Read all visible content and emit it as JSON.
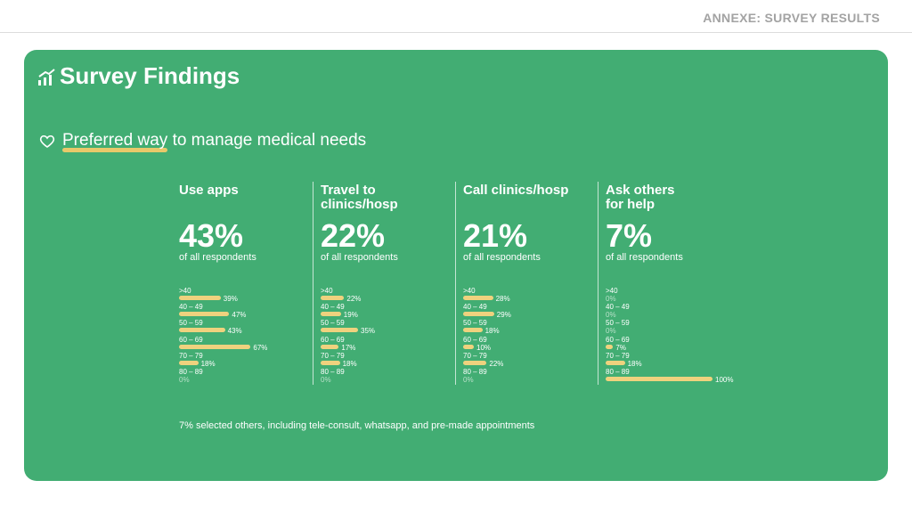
{
  "header": {
    "title": "ANNEXE: SURVEY RESULTS"
  },
  "card": {
    "title": "Survey Findings",
    "subtitle": {
      "highlight": "Preferred way",
      "rest": "to manage medical needs"
    },
    "columns": [
      {
        "label": "Use apps",
        "percent": "43%",
        "caption": "of all respondents",
        "rows": [
          {
            "label": ">40",
            "value": 39,
            "value_label": "39%"
          },
          {
            "label": "40 – 49",
            "value": 47,
            "value_label": "47%"
          },
          {
            "label": "50 – 59",
            "value": 43,
            "value_label": "43%"
          },
          {
            "label": "60 – 69",
            "value": 67,
            "value_label": "67%"
          },
          {
            "label": "70 – 79",
            "value": 18,
            "value_label": "18%"
          },
          {
            "label": "80 – 89",
            "value": 0,
            "value_label": "0%"
          }
        ]
      },
      {
        "label": "Travel to clinics/hosp",
        "percent": "22%",
        "caption": "of all respondents",
        "rows": [
          {
            "label": ">40",
            "value": 22,
            "value_label": "22%"
          },
          {
            "label": "40 – 49",
            "value": 19,
            "value_label": "19%"
          },
          {
            "label": "50 – 59",
            "value": 35,
            "value_label": "35%"
          },
          {
            "label": "60 – 69",
            "value": 17,
            "value_label": "17%"
          },
          {
            "label": "70 – 79",
            "value": 18,
            "value_label": "18%"
          },
          {
            "label": "80 – 89",
            "value": 0,
            "value_label": "0%"
          }
        ]
      },
      {
        "label": "Call clinics/hosp",
        "percent": "21%",
        "caption": "of all respondents",
        "rows": [
          {
            "label": ">40",
            "value": 28,
            "value_label": "28%"
          },
          {
            "label": "40 – 49",
            "value": 29,
            "value_label": "29%"
          },
          {
            "label": "50 – 59",
            "value": 18,
            "value_label": "18%"
          },
          {
            "label": "60 – 69",
            "value": 10,
            "value_label": "10%"
          },
          {
            "label": "70 – 79",
            "value": 22,
            "value_label": "22%"
          },
          {
            "label": "80 – 89",
            "value": 0,
            "value_label": "0%"
          }
        ]
      },
      {
        "label": "Ask others for help",
        "percent": "7%",
        "caption": "of all respondents",
        "rows": [
          {
            "label": ">40",
            "value": 0,
            "value_label": "0%"
          },
          {
            "label": "40 – 49",
            "value": 0,
            "value_label": "0%"
          },
          {
            "label": "50 – 59",
            "value": 0,
            "value_label": "0%"
          },
          {
            "label": "60 – 69",
            "value": 7,
            "value_label": "7%"
          },
          {
            "label": "70 – 79",
            "value": 18,
            "value_label": "18%"
          },
          {
            "label": "80 – 89",
            "value": 100,
            "value_label": "100%"
          }
        ]
      }
    ],
    "footnote": "7% selected others, including tele-consult, whatsapp, and pre-made appointments"
  }
}
